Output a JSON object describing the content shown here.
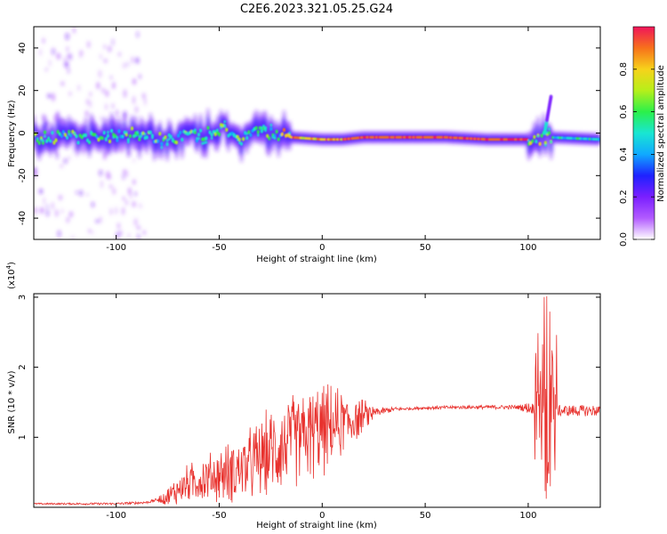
{
  "title": "C2E6.2023.321.05.25.G24",
  "colors": {
    "snr_line": "#e8322e",
    "colormap": [
      "#ffffff",
      "#b25bff",
      "#7a1fff",
      "#1e22ff",
      "#10a9ff",
      "#19e6d2",
      "#2bf04a",
      "#b6ef1a",
      "#f7d21b",
      "#f7711b",
      "#f0145a"
    ]
  },
  "chart_data": [
    {
      "type": "heatmap",
      "xlabel": "Height of straight line (km)",
      "ylabel": "Frequency (Hz)",
      "xlim": [
        -140,
        135
      ],
      "ylim": [
        -50,
        50
      ],
      "x_ticks": [
        -100,
        -50,
        0,
        50,
        100
      ],
      "y_ticks": [
        -40,
        -20,
        0,
        20,
        40
      ],
      "colorbar": {
        "label": "Normalized spectral amplitude",
        "range": [
          0,
          1
        ],
        "ticks": [
          "0.0",
          "0.2",
          "0.4",
          "0.6",
          "0.8"
        ]
      },
      "ridge": [
        [
          -140,
          -2
        ],
        [
          -120,
          -2
        ],
        [
          -95,
          -1
        ],
        [
          -90,
          0
        ],
        [
          -80,
          -3
        ],
        [
          -60,
          -1
        ],
        [
          -50,
          2
        ],
        [
          -40,
          -3
        ],
        [
          -30,
          1
        ],
        [
          -25,
          0
        ],
        [
          -15,
          -2
        ],
        [
          0,
          -3
        ],
        [
          10,
          -3
        ],
        [
          20,
          -2
        ],
        [
          60,
          -2
        ],
        [
          80,
          -3
        ],
        [
          100,
          -3
        ],
        [
          110,
          -2
        ],
        [
          135,
          -3
        ]
      ]
    },
    {
      "type": "line",
      "xlabel": "Height of straight line (km)",
      "ylabel": "SNR (10 * v/v)",
      "y_multiplier_label": "(x10",
      "y_multiplier_exp": "4",
      "xlim": [
        -140,
        135
      ],
      "ylim": [
        0,
        3.05
      ],
      "x_ticks": [
        -100,
        -50,
        0,
        50,
        100
      ],
      "y_ticks": [
        1,
        2,
        3
      ],
      "envelope": [
        [
          -140,
          0.05
        ],
        [
          -100,
          0.05
        ],
        [
          -85,
          0.07
        ],
        [
          -75,
          0.15
        ],
        [
          -65,
          0.35
        ],
        [
          -55,
          0.42
        ],
        [
          -45,
          0.5
        ],
        [
          -35,
          0.6
        ],
        [
          -25,
          0.8
        ],
        [
          -15,
          0.95
        ],
        [
          -5,
          1.05
        ],
        [
          5,
          1.15
        ],
        [
          15,
          1.25
        ],
        [
          25,
          1.35
        ],
        [
          35,
          1.4
        ],
        [
          50,
          1.42
        ],
        [
          70,
          1.43
        ],
        [
          95,
          1.43
        ],
        [
          100,
          1.42
        ],
        [
          105,
          1.4
        ],
        [
          110,
          1.4
        ],
        [
          115,
          1.38
        ],
        [
          135,
          1.38
        ]
      ],
      "noise": [
        [
          -140,
          0.01
        ],
        [
          -80,
          0.02
        ],
        [
          -70,
          0.12
        ],
        [
          -40,
          0.25
        ],
        [
          -20,
          0.35
        ],
        [
          0,
          0.35
        ],
        [
          10,
          0.25
        ],
        [
          25,
          0.06
        ],
        [
          40,
          0.02
        ],
        [
          95,
          0.03
        ],
        [
          100,
          0.08
        ]
      ],
      "spikes": [
        {
          "x": 108.5,
          "min": 0.05,
          "max": 3.05
        },
        {
          "x": 110,
          "min": 0.2,
          "max": 2.9
        },
        {
          "x": 112,
          "min": 0.6,
          "max": 2.3
        },
        {
          "x": 106,
          "min": 0.9,
          "max": 1.8
        },
        {
          "x": 104,
          "min": 1.2,
          "max": 1.7
        }
      ]
    }
  ]
}
